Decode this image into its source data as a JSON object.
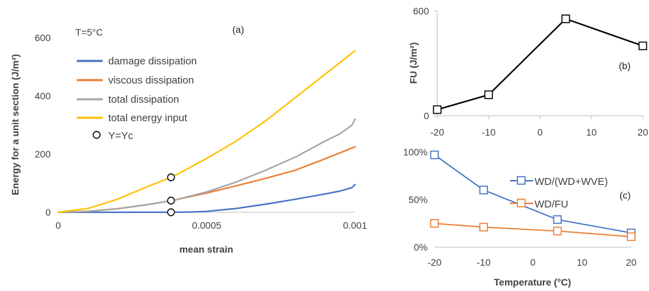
{
  "chart_data": [
    {
      "id": "a",
      "type": "line",
      "panel_label": "(a)",
      "annotation": "T=5°C",
      "xlabel": "mean strain",
      "ylabel": "Energy for a unit section (J/m²)",
      "xlim": [
        0,
        0.001
      ],
      "ylim": [
        0,
        600
      ],
      "xticks": [
        0,
        0.0005,
        0.001
      ],
      "xtick_labels": [
        "0",
        "0.0005",
        "0.001"
      ],
      "yticks": [
        0,
        200,
        400,
        600
      ],
      "ytick_labels": [
        "0",
        "200",
        "400",
        "600"
      ],
      "grid": false,
      "legend_position": "top-left",
      "series": [
        {
          "name": "damage dissipation",
          "color": "#4472C4",
          "points": [
            [
              0,
              0
            ],
            [
              0.0001,
              0
            ],
            [
              0.0002,
              0
            ],
            [
              0.0003,
              0
            ],
            [
              0.00038,
              0
            ],
            [
              0.00045,
              1
            ],
            [
              0.0005,
              3
            ],
            [
              0.0006,
              13
            ],
            [
              0.0007,
              28
            ],
            [
              0.0008,
              45
            ],
            [
              0.0009,
              63
            ],
            [
              0.00095,
              73
            ],
            [
              0.00099,
              85
            ],
            [
              0.001,
              95
            ]
          ]
        },
        {
          "name": "viscous dissipation",
          "color": "#ED7D31",
          "points": [
            [
              0,
              0
            ],
            [
              0.0001,
              3
            ],
            [
              0.0002,
              12
            ],
            [
              0.0003,
              26
            ],
            [
              0.00038,
              40
            ],
            [
              0.0004,
              44
            ],
            [
              0.0005,
              66
            ],
            [
              0.0006,
              91
            ],
            [
              0.0007,
              117
            ],
            [
              0.0008,
              145
            ],
            [
              0.0009,
              184
            ],
            [
              0.001,
              225
            ]
          ]
        },
        {
          "name": "total dissipation",
          "color": "#A5A5A5",
          "points": [
            [
              0,
              0
            ],
            [
              0.0001,
              3
            ],
            [
              0.0002,
              12
            ],
            [
              0.0003,
              26
            ],
            [
              0.00038,
              40
            ],
            [
              0.0004,
              44
            ],
            [
              0.0005,
              70
            ],
            [
              0.0006,
              104
            ],
            [
              0.0007,
              145
            ],
            [
              0.0008,
              190
            ],
            [
              0.0009,
              245
            ],
            [
              0.00095,
              270
            ],
            [
              0.00099,
              300
            ],
            [
              0.001,
              320
            ]
          ]
        },
        {
          "name": "total energy input",
          "color": "#FFC000",
          "points": [
            [
              0,
              0
            ],
            [
              0.0001,
              13
            ],
            [
              0.0002,
              45
            ],
            [
              0.0003,
              88
            ],
            [
              0.00038,
              120
            ],
            [
              0.0004,
              130
            ],
            [
              0.0005,
              185
            ],
            [
              0.0006,
              245
            ],
            [
              0.0007,
              315
            ],
            [
              0.0008,
              395
            ],
            [
              0.0009,
              475
            ],
            [
              0.001,
              555
            ]
          ]
        }
      ],
      "markers": {
        "name": "Y=Yc",
        "points": [
          [
            0.00038,
            120
          ],
          [
            0.00038,
            40
          ],
          [
            0.00038,
            0
          ]
        ]
      }
    },
    {
      "id": "b",
      "type": "line",
      "panel_label": "(b)",
      "xlabel": "",
      "ylabel": "FU (J/m²)",
      "xlim": [
        -20,
        20
      ],
      "ylim": [
        0,
        600
      ],
      "xticks": [
        -20,
        -10,
        0,
        10,
        20
      ],
      "xtick_labels": [
        "-20",
        "-10",
        "0",
        "10",
        "20"
      ],
      "yticks": [
        0,
        600
      ],
      "ytick_labels": [
        "0",
        "600"
      ],
      "grid": false,
      "series": [
        {
          "name": "",
          "color": "#000000",
          "points": [
            [
              -20,
              35
            ],
            [
              -10,
              120
            ],
            [
              5,
              555
            ],
            [
              20,
              400
            ]
          ]
        }
      ]
    },
    {
      "id": "c",
      "type": "line",
      "panel_label": "(c)",
      "xlabel": "Temperature (°C)",
      "ylabel": "",
      "xlim": [
        -20,
        20
      ],
      "ylim": [
        0,
        1
      ],
      "xticks": [
        -20,
        -10,
        0,
        10,
        20
      ],
      "xtick_labels": [
        "-20",
        "-10",
        "0",
        "10",
        "20"
      ],
      "yticks": [
        0,
        0.5,
        1
      ],
      "ytick_labels": [
        "0%",
        "50%",
        "100%"
      ],
      "grid": false,
      "legend_position": "top-right",
      "series": [
        {
          "name": "WD/(WD+WVE)",
          "color": "#4472C4",
          "points": [
            [
              -20,
              0.97
            ],
            [
              -10,
              0.6
            ],
            [
              5,
              0.29
            ],
            [
              20,
              0.15
            ]
          ]
        },
        {
          "name": "WD/FU",
          "color": "#ED7D31",
          "points": [
            [
              -20,
              0.25
            ],
            [
              -10,
              0.21
            ],
            [
              5,
              0.17
            ],
            [
              20,
              0.11
            ]
          ]
        }
      ]
    }
  ]
}
